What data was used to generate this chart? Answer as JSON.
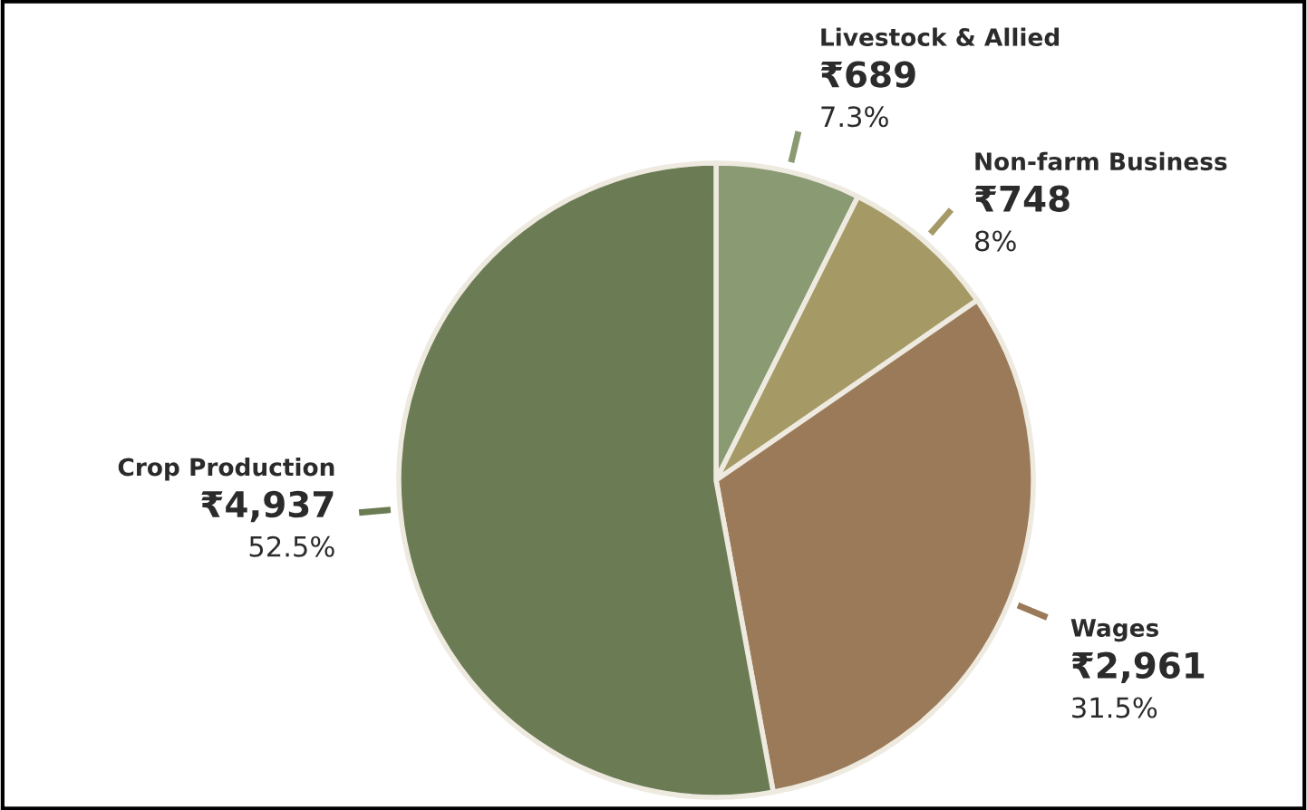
{
  "chart_data": {
    "type": "pie",
    "categories": [
      "Livestock & Allied",
      "Non-farm Business",
      "Wages",
      "Crop Production"
    ],
    "values": [
      689,
      748,
      2961,
      4937
    ],
    "colors": [
      "#8a9a73",
      "#a59966",
      "#9a7a59",
      "#6b7b54"
    ],
    "value_labels": [
      "₹689",
      "₹748",
      "₹2,961",
      "₹4,937"
    ],
    "annotations": [
      {
        "text": "7.3%",
        "x": "Livestock & Allied"
      },
      {
        "text": "8%",
        "x": "Non-farm Business"
      },
      {
        "text": "31.5%",
        "x": "Wages"
      },
      {
        "text": "52.5%",
        "x": "Crop Production"
      }
    ],
    "legend": false
  }
}
